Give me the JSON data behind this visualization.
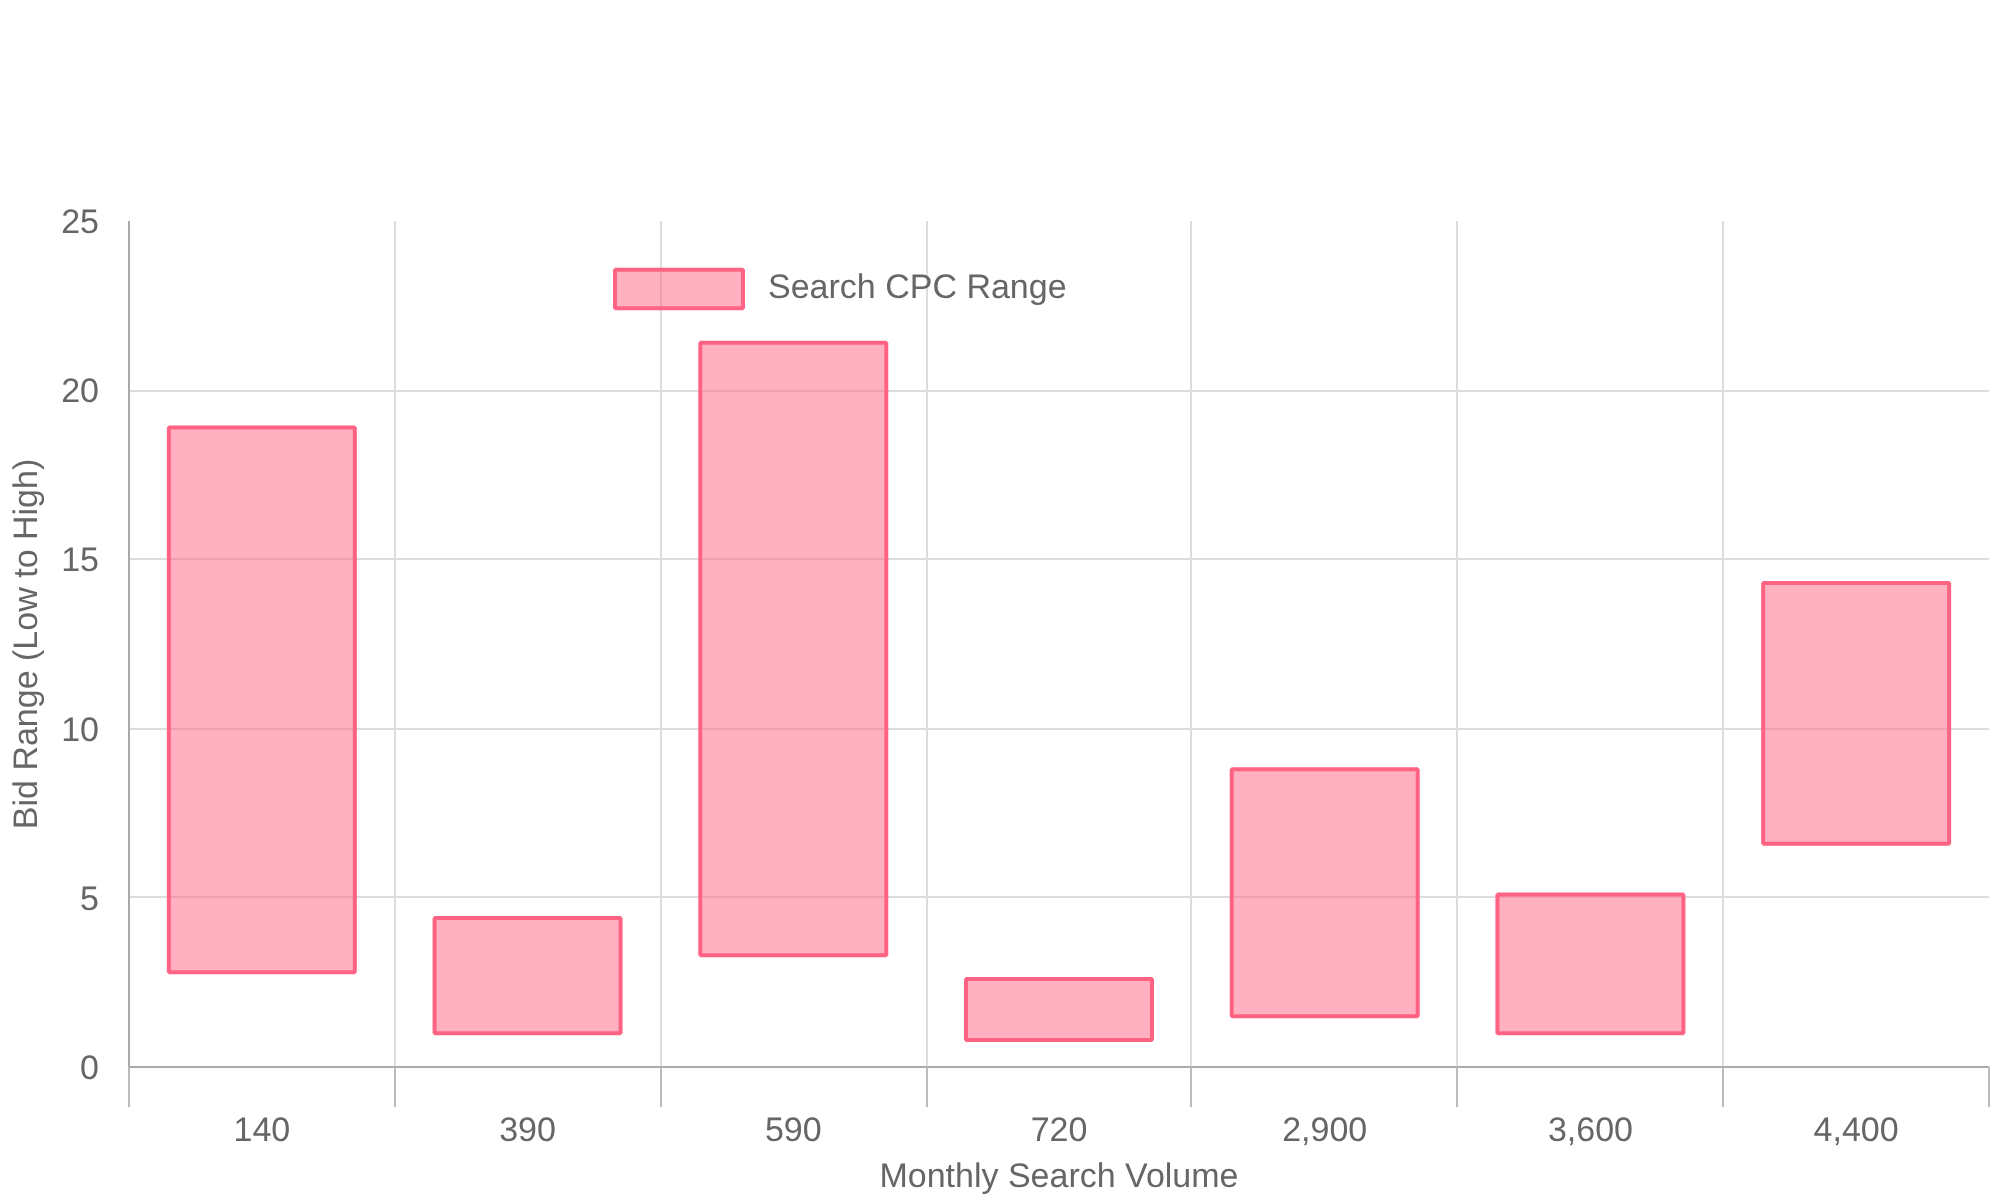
{
  "chart_data": {
    "type": "bar",
    "xlabel": "Monthly Search Volume",
    "ylabel": "Bid Range (Low to High)",
    "categories": [
      "140",
      "390",
      "590",
      "720",
      "2,900",
      "3,600",
      "4,400"
    ],
    "series": [
      {
        "name": "Search CPC Range",
        "color": "#ff6384",
        "values": [
          16.1,
          3.4,
          18.1,
          1.8,
          7.3,
          4.1,
          7.7
        ],
        "base": [
          2.8,
          1.0,
          3.3,
          0.8,
          1.5,
          1.0,
          6.6
        ]
      }
    ],
    "ylim": [
      0,
      25
    ],
    "yticks": [
      0,
      5,
      10,
      15,
      20,
      25
    ],
    "grid": true,
    "legend": "top"
  }
}
